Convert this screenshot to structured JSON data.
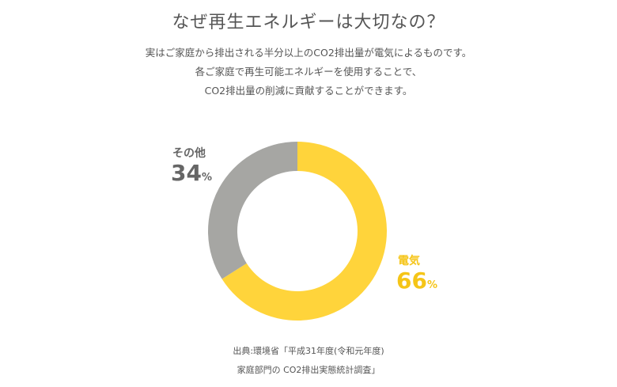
{
  "header": {
    "title": "なぜ再生エネルギーは大切なの？",
    "description": [
      "実はご家庭から排出される半分以上のCO2排出量が電気によるものです。",
      "各ご家庭で再生可能エネルギーを使用することで、",
      "CO2排出量の削減に貢献することができます。"
    ]
  },
  "chart_data": {
    "type": "pie",
    "donut": true,
    "categories": [
      "電気",
      "その他"
    ],
    "values": [
      66,
      34
    ],
    "unit": "%",
    "colors": [
      "#FFD43B",
      "#A6A6A3"
    ],
    "label_colors": [
      "#F5C518",
      "#666666"
    ],
    "start": "top",
    "direction": "clockwise"
  },
  "source": {
    "line1": "出典:環境省「平成31年度(令和元年度)",
    "line2": "家庭部門の CO2排出実態統計調査」"
  }
}
